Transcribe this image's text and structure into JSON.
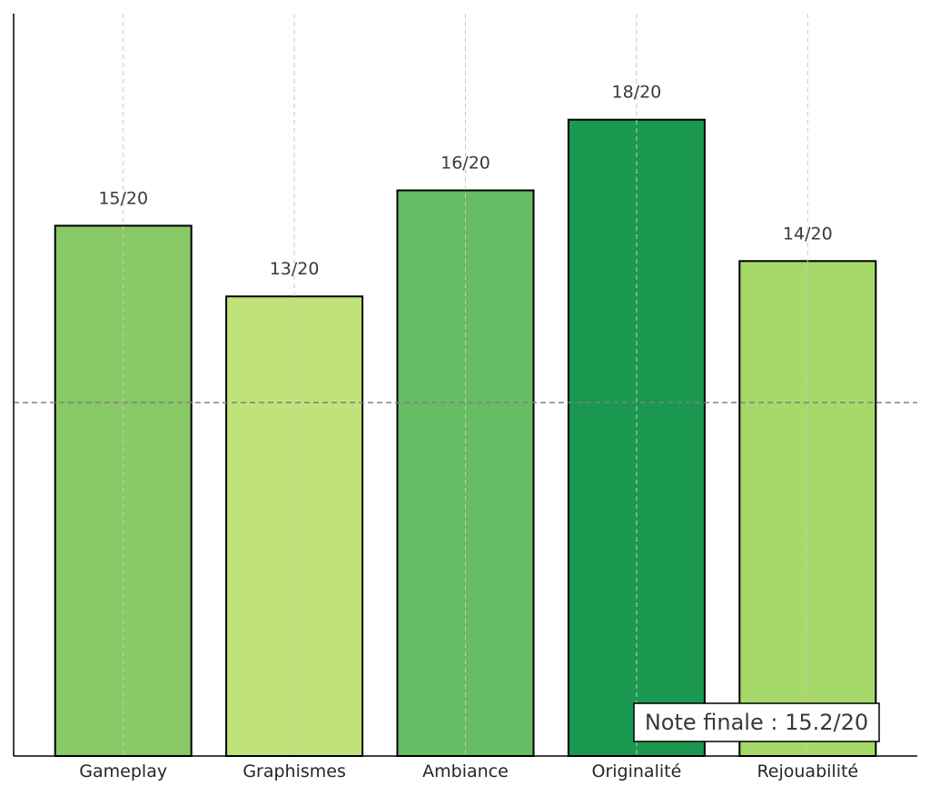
{
  "chart_data": {
    "type": "bar",
    "title": "",
    "xlabel": "",
    "ylabel": "",
    "categories": [
      "Gameplay",
      "Graphismes",
      "Ambiance",
      "Originalité",
      "Rejouabilité"
    ],
    "values": [
      15,
      13,
      16,
      18,
      14
    ],
    "value_labels": [
      "15/20",
      "13/20",
      "16/20",
      "18/20",
      "14/20"
    ],
    "bar_colors": [
      "#88c966",
      "#bfe37a",
      "#66bd63",
      "#1a9850",
      "#a6d96a"
    ],
    "ylim": [
      0,
      20
    ],
    "grid": "vertical dashed",
    "mean_line": {
      "value": 10,
      "style": "dashed",
      "color": "#808080"
    },
    "annotation": {
      "text": "Note finale : 15.2/20",
      "placement": "bottom-right"
    },
    "axes": {
      "left_spine": true,
      "bottom_spine": true,
      "y_tick_labels": false
    }
  }
}
